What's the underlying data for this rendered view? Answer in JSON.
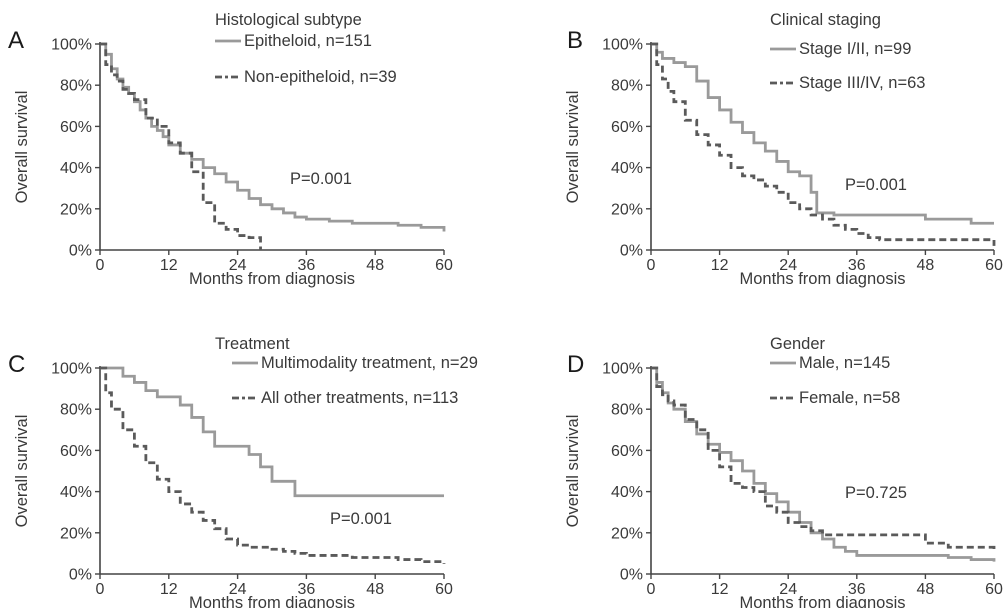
{
  "chart_data": [
    {
      "letter": "A",
      "type": "line",
      "title": "Histological subtype",
      "xlabel": "Months from diagnosis",
      "ylabel": "Overall survival",
      "xlim": [
        0,
        60
      ],
      "ylim": [
        0,
        100
      ],
      "xticks": [
        "0",
        "12",
        "24",
        "36",
        "48",
        "60"
      ],
      "yticks": [
        "0%",
        "20%",
        "40%",
        "60%",
        "80%",
        "100%"
      ],
      "pvalue": "P=0.001",
      "series": [
        {
          "name": "Epitheloid, n=151",
          "style": "solid",
          "color": "#9a9a9a",
          "x": [
            0,
            1,
            2,
            3,
            4,
            5,
            6,
            7,
            8,
            9,
            10,
            11,
            12,
            14,
            16,
            18,
            20,
            22,
            24,
            26,
            28,
            30,
            32,
            34,
            36,
            40,
            44,
            48,
            52,
            56,
            60
          ],
          "y": [
            100,
            95,
            88,
            83,
            79,
            76,
            72,
            68,
            64,
            60,
            58,
            55,
            51,
            47,
            44,
            40,
            37,
            33,
            29,
            25,
            22,
            20,
            18,
            16,
            15,
            14,
            13,
            13,
            12,
            11,
            9
          ]
        },
        {
          "name": "Non-epitheloid, n=39",
          "style": "dashed",
          "color": "#5a5a5a",
          "x": [
            0,
            1,
            2,
            3,
            4,
            5,
            6,
            8,
            10,
            12,
            14,
            16,
            18,
            20,
            22,
            24,
            26,
            28,
            28
          ],
          "y": [
            100,
            90,
            85,
            82,
            78,
            76,
            73,
            64,
            60,
            52,
            47,
            38,
            23,
            13,
            10,
            7,
            6,
            5,
            0
          ]
        }
      ]
    },
    {
      "letter": "B",
      "type": "line",
      "title": "Clinical staging",
      "xlabel": "Months from diagnosis",
      "ylabel": "Overall survival",
      "xlim": [
        0,
        60
      ],
      "ylim": [
        0,
        100
      ],
      "xticks": [
        "0",
        "12",
        "24",
        "36",
        "48",
        "60"
      ],
      "yticks": [
        "0%",
        "20%",
        "40%",
        "60%",
        "80%",
        "100%"
      ],
      "pvalue": "P=0.001",
      "series": [
        {
          "name": "Stage I/II, n=99",
          "style": "solid",
          "color": "#9a9a9a",
          "x": [
            0,
            1,
            2,
            4,
            6,
            8,
            10,
            12,
            14,
            16,
            18,
            20,
            22,
            24,
            26,
            28,
            29,
            32,
            36,
            40,
            44,
            48,
            52,
            56,
            60
          ],
          "y": [
            100,
            96,
            93,
            91,
            89,
            82,
            74,
            68,
            62,
            57,
            52,
            48,
            43,
            38,
            36,
            28,
            18,
            17,
            17,
            17,
            17,
            15,
            15,
            13,
            13
          ]
        },
        {
          "name": "Stage III/IV, n=63",
          "style": "dashed",
          "color": "#5a5a5a",
          "x": [
            0,
            1,
            2,
            3,
            4,
            6,
            8,
            10,
            12,
            14,
            16,
            18,
            20,
            22,
            24,
            26,
            28,
            30,
            32,
            34,
            36,
            38,
            40,
            44,
            48,
            52,
            56,
            60
          ],
          "y": [
            100,
            90,
            83,
            77,
            72,
            63,
            56,
            51,
            46,
            40,
            36,
            34,
            31,
            28,
            23,
            20,
            17,
            15,
            12,
            10,
            8,
            6,
            5,
            5,
            5,
            5,
            5,
            2
          ]
        }
      ]
    },
    {
      "letter": "C",
      "type": "line",
      "title": "Treatment",
      "xlabel": "Months from diagnosis",
      "ylabel": "Overall survival",
      "xlim": [
        0,
        60
      ],
      "ylim": [
        0,
        100
      ],
      "xticks": [
        "0",
        "12",
        "24",
        "36",
        "48",
        "60"
      ],
      "yticks": [
        "0%",
        "20%",
        "40%",
        "60%",
        "80%",
        "100%"
      ],
      "pvalue": "P=0.001",
      "series": [
        {
          "name": "Multimodality treatment, n=29",
          "style": "solid",
          "color": "#9a9a9a",
          "x": [
            0,
            4,
            6,
            8,
            10,
            12,
            14,
            16,
            18,
            20,
            22,
            24,
            26,
            28,
            30,
            32,
            34,
            36,
            40,
            48,
            60
          ],
          "y": [
            100,
            96,
            93,
            89,
            86,
            86,
            82,
            76,
            69,
            62,
            62,
            62,
            58,
            52,
            45,
            45,
            38,
            38,
            38,
            38,
            38
          ]
        },
        {
          "name": "All other treatments, n=113",
          "style": "dashed",
          "color": "#5a5a5a",
          "x": [
            0,
            1,
            2,
            4,
            6,
            8,
            10,
            12,
            14,
            16,
            18,
            20,
            22,
            24,
            26,
            28,
            30,
            32,
            34,
            36,
            40,
            44,
            48,
            52,
            56,
            60
          ],
          "y": [
            100,
            88,
            80,
            70,
            62,
            54,
            46,
            40,
            34,
            30,
            26,
            22,
            17,
            14,
            13,
            13,
            12,
            11,
            10,
            9,
            9,
            8,
            8,
            7,
            6,
            5
          ]
        }
      ]
    },
    {
      "letter": "D",
      "type": "line",
      "title": "Gender",
      "xlabel": "Months from diagnosis",
      "ylabel": "Overall survival",
      "xlim": [
        0,
        60
      ],
      "ylim": [
        0,
        100
      ],
      "xticks": [
        "0",
        "12",
        "24",
        "36",
        "48",
        "60"
      ],
      "yticks": [
        "0%",
        "20%",
        "40%",
        "60%",
        "80%",
        "100%"
      ],
      "pvalue": "P=0.725",
      "series": [
        {
          "name": "Male, n=145",
          "style": "solid",
          "color": "#9a9a9a",
          "x": [
            0,
            1,
            2,
            3,
            4,
            6,
            8,
            10,
            12,
            14,
            16,
            18,
            20,
            22,
            24,
            26,
            28,
            30,
            32,
            34,
            36,
            40,
            44,
            48,
            52,
            56,
            60
          ],
          "y": [
            100,
            93,
            88,
            83,
            80,
            74,
            68,
            63,
            59,
            55,
            50,
            44,
            39,
            35,
            30,
            25,
            20,
            17,
            13,
            11,
            9,
            9,
            9,
            9,
            8,
            7,
            6
          ]
        },
        {
          "name": "Female, n=58",
          "style": "dashed",
          "color": "#5a5a5a",
          "x": [
            0,
            1,
            2,
            3,
            4,
            6,
            8,
            10,
            12,
            14,
            16,
            18,
            20,
            22,
            24,
            26,
            28,
            30,
            36,
            40,
            44,
            48,
            52,
            56,
            60
          ],
          "y": [
            100,
            91,
            87,
            84,
            82,
            75,
            70,
            60,
            52,
            44,
            42,
            40,
            33,
            30,
            25,
            23,
            21,
            19,
            19,
            19,
            19,
            15,
            13,
            13,
            12
          ]
        }
      ]
    }
  ]
}
